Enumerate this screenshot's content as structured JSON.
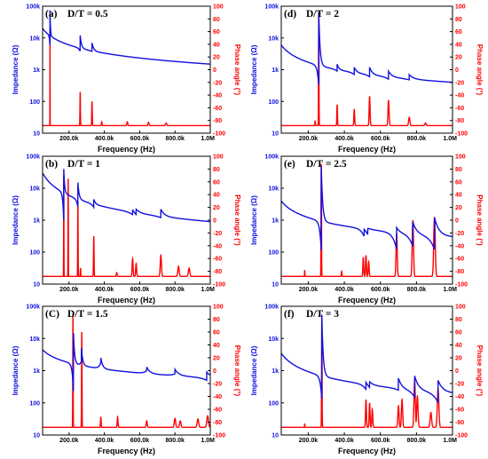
{
  "figure": {
    "x_axis_label": "Frequency (Hz)",
    "y_left_label": "Impedance (Ω)",
    "y_right_label": "Phase angle (°)",
    "left_color": "#1010e0",
    "right_color": "#ff0000",
    "x_ticks": [
      "200.0k",
      "400.0k",
      "600.0k",
      "800.0k",
      "1.0M"
    ],
    "x_tick_values": [
      200000,
      400000,
      600000,
      800000,
      1000000
    ],
    "left_ticks": [
      "10",
      "100",
      "1k",
      "10k",
      "100k"
    ],
    "left_tick_values": [
      10,
      100,
      1000,
      10000,
      100000
    ],
    "right_ticks": [
      "-100",
      "-80",
      "-60",
      "-40",
      "-20",
      "0",
      "20",
      "40",
      "60",
      "80",
      "100"
    ],
    "right_tick_values": [
      -100,
      -80,
      -60,
      -40,
      -20,
      0,
      20,
      40,
      60,
      80,
      100
    ]
  },
  "chart_data": [
    {
      "type": "line",
      "panel": "(a)",
      "title": "D/T = 0.5",
      "xlabel": "Frequency (Hz)",
      "ylabel": "Impedance (Ω)",
      "y2label": "Phase angle (°)",
      "xlim": [
        50000,
        1000000
      ],
      "ylim": [
        10,
        100000
      ],
      "yscale": "log",
      "y2lim": [
        -100,
        100
      ],
      "impedance": {
        "name": "Impedance",
        "base_at_50k": 20000,
        "base_at_1M": 1500,
        "resonances": [
          {
            "f": 92000,
            "zmin": 5000,
            "zmax": 75000
          },
          {
            "f": 263000,
            "zmin": 3800,
            "zmax": 12000
          },
          {
            "f": 330000,
            "zmin": 3800,
            "zmax": 7000
          }
        ]
      },
      "phase": {
        "name": "Phase angle",
        "baseline": -88,
        "peaks": [
          {
            "f": 92000,
            "p": 62
          },
          {
            "f": 263000,
            "p": -35
          },
          {
            "f": 330000,
            "p": -50
          },
          {
            "f": 385000,
            "p": -82
          },
          {
            "f": 530000,
            "p": -82
          },
          {
            "f": 650000,
            "p": -83
          },
          {
            "f": 750000,
            "p": -84
          }
        ]
      }
    },
    {
      "type": "line",
      "panel": "(d)",
      "title": "D/T = 2",
      "xlabel": "Frequency (Hz)",
      "ylabel": "Impedance (Ω)",
      "y2label": "Phase angle (°)",
      "xlim": [
        50000,
        1000000
      ],
      "ylim": [
        10,
        100000
      ],
      "yscale": "log",
      "y2lim": [
        -100,
        100
      ],
      "impedance": {
        "name": "Impedance",
        "base_at_50k": 6000,
        "base_at_1M": 400,
        "resonances": [
          {
            "f": 258000,
            "zmin": 300,
            "zmax": 65000
          },
          {
            "f": 360000,
            "zmin": 900,
            "zmax": 1500
          },
          {
            "f": 455000,
            "zmin": 700,
            "zmax": 1200
          },
          {
            "f": 540000,
            "zmin": 600,
            "zmax": 1200
          },
          {
            "f": 645000,
            "zmin": 500,
            "zmax": 900
          },
          {
            "f": 760000,
            "zmin": 480,
            "zmax": 700
          }
        ]
      },
      "phase": {
        "name": "Phase angle",
        "baseline": -88,
        "peaks": [
          {
            "f": 238000,
            "p": -80
          },
          {
            "f": 258000,
            "p": 92
          },
          {
            "f": 360000,
            "p": -55
          },
          {
            "f": 455000,
            "p": -62
          },
          {
            "f": 540000,
            "p": -42
          },
          {
            "f": 645000,
            "p": -48
          },
          {
            "f": 760000,
            "p": -75
          },
          {
            "f": 850000,
            "p": -84
          }
        ]
      }
    },
    {
      "type": "line",
      "panel": "(b)",
      "title": "D/T = 1",
      "xlabel": "Frequency (Hz)",
      "ylabel": "Impedance (Ω)",
      "y2label": "Phase angle (°)",
      "xlim": [
        50000,
        1000000
      ],
      "ylim": [
        10,
        100000
      ],
      "yscale": "log",
      "y2lim": [
        -100,
        100
      ],
      "impedance": {
        "name": "Impedance",
        "base_at_50k": 30000,
        "base_at_1M": 900,
        "resonances": [
          {
            "f": 170000,
            "zmin": 800,
            "zmax": 40000
          },
          {
            "f": 250000,
            "zmin": 2500,
            "zmax": 15000
          },
          {
            "f": 340000,
            "zmin": 2500,
            "zmax": 4500
          },
          {
            "f": 560000,
            "zmin": 1500,
            "zmax": 2500
          },
          {
            "f": 580000,
            "zmin": 1500,
            "zmax": 2200
          },
          {
            "f": 720000,
            "zmin": 1200,
            "zmax": 2200
          }
        ]
      },
      "phase": {
        "name": "Phase angle",
        "baseline": -88,
        "peaks": [
          {
            "f": 170000,
            "p": 70
          },
          {
            "f": 195000,
            "p": 65
          },
          {
            "f": 250000,
            "p": 30
          },
          {
            "f": 265000,
            "p": -75
          },
          {
            "f": 340000,
            "p": -25
          },
          {
            "f": 470000,
            "p": -82
          },
          {
            "f": 560000,
            "p": -60
          },
          {
            "f": 580000,
            "p": -68
          },
          {
            "f": 720000,
            "p": -55
          },
          {
            "f": 820000,
            "p": -72
          },
          {
            "f": 880000,
            "p": -75
          }
        ]
      }
    },
    {
      "type": "line",
      "panel": "(e)",
      "title": "D/T = 2.5",
      "xlabel": "Frequency (Hz)",
      "ylabel": "Impedance (Ω)",
      "y2label": "Phase angle (°)",
      "xlim": [
        50000,
        1000000
      ],
      "ylim": [
        10,
        100000
      ],
      "yscale": "log",
      "y2lim": [
        -100,
        100
      ],
      "impedance": {
        "name": "Impedance",
        "base_at_50k": 4000,
        "base_at_1M": 300,
        "resonances": [
          {
            "f": 272000,
            "zmin": 100,
            "zmax": 50000
          },
          {
            "f": 510000,
            "zmin": 300,
            "zmax": 600
          },
          {
            "f": 530000,
            "zmin": 350,
            "zmax": 550
          },
          {
            "f": 690000,
            "zmin": 120,
            "zmax": 600
          },
          {
            "f": 780000,
            "zmin": 150,
            "zmax": 900
          },
          {
            "f": 900000,
            "zmin": 120,
            "zmax": 1200
          }
        ]
      },
      "phase": {
        "name": "Phase angle",
        "baseline": -88,
        "peaks": [
          {
            "f": 180000,
            "p": -78
          },
          {
            "f": 272000,
            "p": 88
          },
          {
            "f": 385000,
            "p": -80
          },
          {
            "f": 505000,
            "p": -58
          },
          {
            "f": 520000,
            "p": -55
          },
          {
            "f": 535000,
            "p": -65
          },
          {
            "f": 690000,
            "p": -20
          },
          {
            "f": 780000,
            "p": 0
          },
          {
            "f": 900000,
            "p": 5
          }
        ]
      }
    },
    {
      "type": "line",
      "panel": "(C)",
      "title": "D/T = 1.5",
      "xlabel": "Frequency (Hz)",
      "ylabel": "Impedance (Ω)",
      "y2label": "Phase angle (°)",
      "xlim": [
        50000,
        1000000
      ],
      "ylim": [
        10,
        100000
      ],
      "yscale": "log",
      "y2lim": [
        -100,
        100
      ],
      "impedance": {
        "name": "Impedance",
        "base_at_50k": 4500,
        "base_at_1M": 600,
        "resonances": [
          {
            "f": 225000,
            "zmin": 200,
            "zmax": 15000
          },
          {
            "f": 270000,
            "zmin": 2000,
            "zmax": 5000
          },
          {
            "f": 380000,
            "zmin": 1800,
            "zmax": 2500
          },
          {
            "f": 640000,
            "zmin": 1000,
            "zmax": 1300
          },
          {
            "f": 800000,
            "zmin": 800,
            "zmax": 1100
          },
          {
            "f": 980000,
            "zmin": 500,
            "zmax": 900
          }
        ]
      },
      "phase": {
        "name": "Phase angle",
        "baseline": -88,
        "peaks": [
          {
            "f": 222000,
            "p": 88
          },
          {
            "f": 272000,
            "p": 60
          },
          {
            "f": 380000,
            "p": -72
          },
          {
            "f": 475000,
            "p": -72
          },
          {
            "f": 640000,
            "p": -78
          },
          {
            "f": 800000,
            "p": -74
          },
          {
            "f": 830000,
            "p": -78
          },
          {
            "f": 930000,
            "p": -75
          },
          {
            "f": 985000,
            "p": -70
          }
        ]
      }
    },
    {
      "type": "line",
      "panel": "(f)",
      "title": "D/T = 3",
      "xlabel": "Frequency (Hz)",
      "ylabel": "Impedance (Ω)",
      "y2label": "Phase angle (°)",
      "xlim": [
        50000,
        1000000
      ],
      "ylim": [
        10,
        100000
      ],
      "yscale": "log",
      "y2lim": [
        -100,
        100
      ],
      "impedance": {
        "name": "Impedance",
        "base_at_50k": 3500,
        "base_at_1M": 200,
        "resonances": [
          {
            "f": 275000,
            "zmin": 120,
            "zmax": 55000
          },
          {
            "f": 520000,
            "zmin": 250,
            "zmax": 500
          },
          {
            "f": 540000,
            "zmin": 300,
            "zmax": 450
          },
          {
            "f": 700000,
            "zmin": 250,
            "zmax": 600
          },
          {
            "f": 790000,
            "zmin": 150,
            "zmax": 700
          },
          {
            "f": 920000,
            "zmin": 100,
            "zmax": 500
          }
        ]
      },
      "phase": {
        "name": "Phase angle",
        "baseline": -88,
        "peaks": [
          {
            "f": 180000,
            "p": -82
          },
          {
            "f": 275000,
            "p": 85
          },
          {
            "f": 520000,
            "p": -45
          },
          {
            "f": 540000,
            "p": -50
          },
          {
            "f": 555000,
            "p": -60
          },
          {
            "f": 700000,
            "p": -55
          },
          {
            "f": 720000,
            "p": -45
          },
          {
            "f": 790000,
            "p": -15
          },
          {
            "f": 805000,
            "p": -40
          },
          {
            "f": 880000,
            "p": -65
          },
          {
            "f": 920000,
            "p": -28
          }
        ]
      }
    }
  ]
}
